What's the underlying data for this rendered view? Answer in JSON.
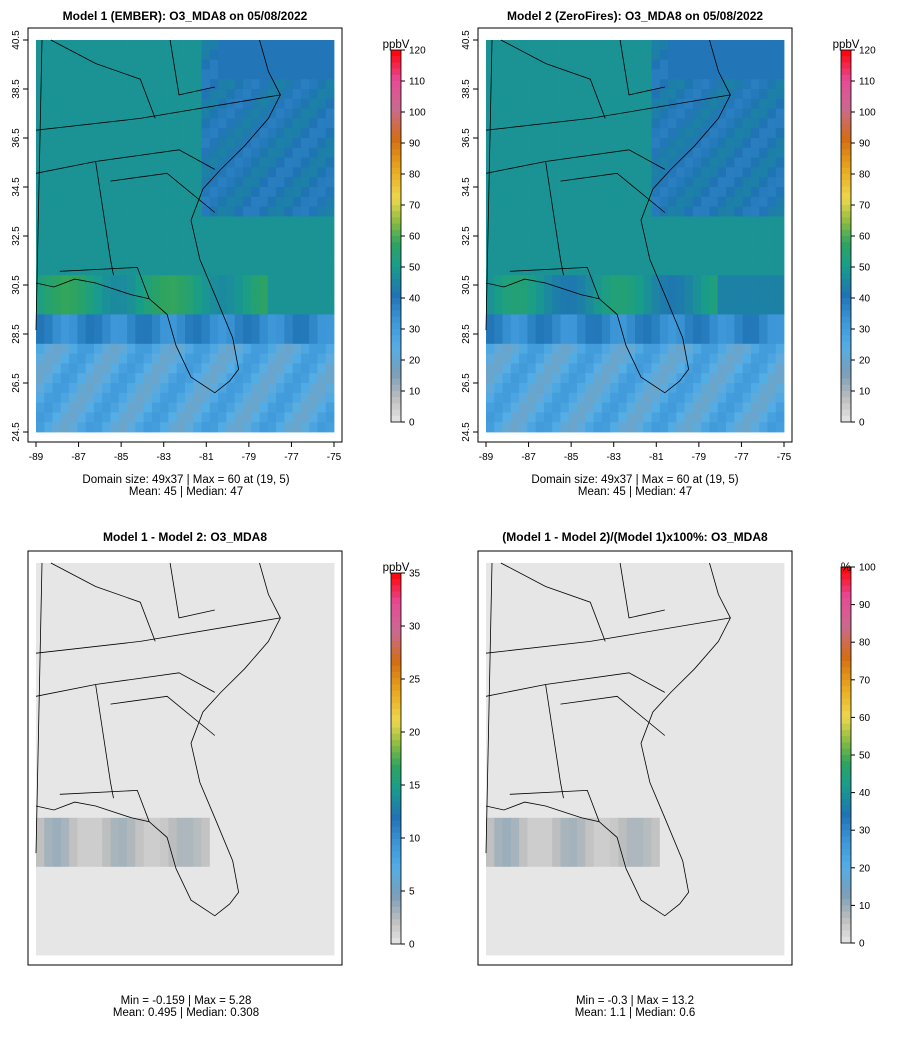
{
  "chart_data": [
    {
      "type": "heatmap",
      "title": "Model 1 (EMBER): O3_MDA8 on 05/08/2022",
      "variable": "O3_MDA8",
      "units": "ppbV",
      "xlim": [
        -89,
        -75
      ],
      "ylim": [
        24.5,
        40.5
      ],
      "x_ticks": [
        "-89",
        "-87",
        "-85",
        "-83",
        "-81",
        "-79",
        "-77",
        "-75"
      ],
      "y_ticks": [
        "24.5",
        "26.5",
        "28.5",
        "30.5",
        "32.5",
        "34.5",
        "36.5",
        "38.5",
        "40.5"
      ],
      "colorbar": {
        "label": "ppbV",
        "min": 0,
        "max": 120,
        "ticks": [
          "0",
          "10",
          "20",
          "30",
          "40",
          "50",
          "60",
          "70",
          "80",
          "90",
          "100",
          "110",
          "120"
        ]
      },
      "stats_line1": "Domain size: 49x37 | Max = 60 at (19, 5)",
      "stats_line2": "Mean: 45 |  Median: 47",
      "field": "model1"
    },
    {
      "type": "heatmap",
      "title": "Model 2 (ZeroFires): O3_MDA8 on 05/08/2022",
      "variable": "O3_MDA8",
      "units": "ppbV",
      "xlim": [
        -89,
        -75
      ],
      "ylim": [
        24.5,
        40.5
      ],
      "x_ticks": [
        "-89",
        "-87",
        "-85",
        "-83",
        "-81",
        "-79",
        "-77",
        "-75"
      ],
      "y_ticks": [
        "24.5",
        "26.5",
        "28.5",
        "30.5",
        "32.5",
        "34.5",
        "36.5",
        "38.5",
        "40.5"
      ],
      "colorbar": {
        "label": "ppbV",
        "min": 0,
        "max": 120,
        "ticks": [
          "0",
          "10",
          "20",
          "30",
          "40",
          "50",
          "60",
          "70",
          "80",
          "90",
          "100",
          "110",
          "120"
        ]
      },
      "stats_line1": "Domain size: 49x37 | Max = 60 at (19, 5)",
      "stats_line2": "Mean: 45 |  Median: 47",
      "field": "model2"
    },
    {
      "type": "heatmap",
      "title": "Model 1 - Model 2: O3_MDA8",
      "units": "ppbV",
      "colorbar": {
        "label": "ppbV",
        "min": 0,
        "max": 35,
        "ticks": [
          "0",
          "5",
          "10",
          "15",
          "20",
          "25",
          "30",
          "35"
        ]
      },
      "stats_line1": "Min = -0.159 | Max = 5.28",
      "stats_line2": "Mean: 0.495 |  Median: 0.308",
      "field": "diff"
    },
    {
      "type": "heatmap",
      "title": "(Model 1 - Model 2)/(Model 1)x100%: O3_MDA8",
      "units": "%",
      "colorbar": {
        "label": "%",
        "min": 0,
        "max": 100,
        "ticks": [
          "0",
          "10",
          "20",
          "30",
          "40",
          "50",
          "60",
          "70",
          "80",
          "90",
          "100"
        ]
      },
      "stats_line1": "Min = -0.3 | Max = 13.2",
      "stats_line2": "Mean: 1.1 |  Median: 0.6",
      "field": "pct"
    }
  ],
  "colors": {
    "ramp": [
      "#e6e6e6",
      "#c0c0c0",
      "#7a9eb7",
      "#55aee6",
      "#3d97d8",
      "#1f73b4",
      "#199d8b",
      "#2ea45f",
      "#8fbd42",
      "#eed84e",
      "#e8a81e",
      "#d36d12",
      "#c96a8e",
      "#e84a95",
      "#ff0000"
    ],
    "background": "#ffffff",
    "frame": "#000000"
  }
}
